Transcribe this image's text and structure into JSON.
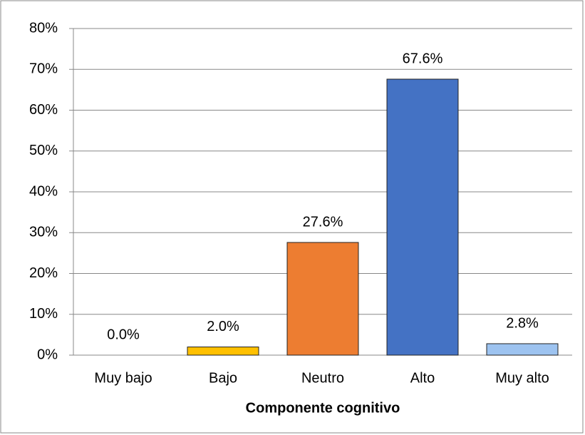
{
  "chart_data": {
    "type": "bar",
    "x_label": "Componente cognitivo",
    "categories": [
      "Muy bajo",
      "Bajo",
      "Neutro",
      "Alto",
      "Muy alto"
    ],
    "values": [
      0.0,
      2.0,
      27.6,
      67.6,
      2.8
    ],
    "value_labels": [
      "0.0%",
      "2.0%",
      "27.6%",
      "67.6%",
      "2.8%"
    ],
    "colors": [
      "#5b9bd5",
      "#ffc000",
      "#ed7d31",
      "#4472c4",
      "#9dc3f0"
    ],
    "ylim": [
      0,
      80
    ],
    "yticks": [
      {
        "value": 0,
        "label": "0%"
      },
      {
        "value": 10,
        "label": "10%"
      },
      {
        "value": 20,
        "label": "20%"
      },
      {
        "value": 30,
        "label": "30%"
      },
      {
        "value": 40,
        "label": "40%"
      },
      {
        "value": 50,
        "label": "50%"
      },
      {
        "value": 60,
        "label": "60%"
      },
      {
        "value": 70,
        "label": "70%"
      },
      {
        "value": 80,
        "label": "80%"
      }
    ],
    "grid": true
  }
}
